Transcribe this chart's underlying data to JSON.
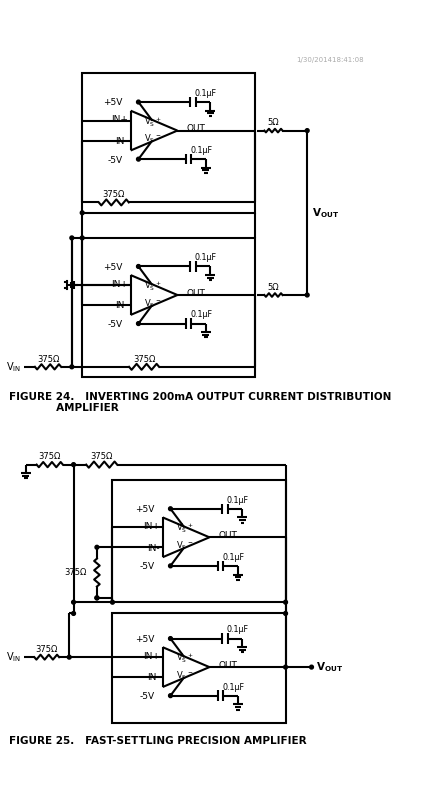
{
  "bg_color": "#ffffff",
  "lw": 1.5,
  "fig24_line1": "FIGURE 24.   INVERTING 200mA OUTPUT CURRENT DISTRIBUTION",
  "fig24_line2": "             AMPLIFIER",
  "fig25_caption": "FIGURE 25.   FAST-SETTLING PRECISION AMPLIFIER",
  "timestamp": "1/30/201418:41:08"
}
